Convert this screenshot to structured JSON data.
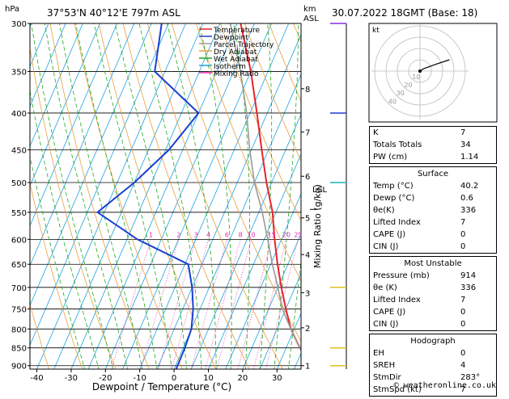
{
  "header": {
    "location": "37°53'N  40°12'E  797m  ASL",
    "datetime": "30.07.2022  18GMT  (Base: 18)",
    "pressure_unit": "hPa",
    "altitude_unit_line1": "km",
    "altitude_unit_line2": "ASL"
  },
  "legend": [
    {
      "name": "Temperature",
      "color": "#e8232a"
    },
    {
      "name": "Dewpoint",
      "color": "#1a3fd1"
    },
    {
      "name": "Parcel Trajectory",
      "color": "#9a9a9a"
    },
    {
      "name": "Dry Adiabat",
      "color": "#e6a03c"
    },
    {
      "name": "Wet Adiabat",
      "color": "#1ea81e"
    },
    {
      "name": "Isotherm",
      "color": "#1aa3e0"
    },
    {
      "name": "Mixing Ratio",
      "color": "#e62bb0"
    }
  ],
  "chart_data": {
    "type": "line",
    "title": "",
    "xlabel": "Dewpoint / Temperature (°C)",
    "ylabel": "hPa",
    "right_label": "Mixing Ratio (g/kg)",
    "xlim": [
      -42,
      37
    ],
    "ylim": [
      300,
      910
    ],
    "skew_per_decade_pressure": 0.43,
    "x_ticks": [
      -40,
      -30,
      -20,
      -10,
      0,
      10,
      20,
      30
    ],
    "pressure_levels": [
      300,
      350,
      400,
      450,
      500,
      550,
      600,
      650,
      700,
      750,
      800,
      850,
      900
    ],
    "km_levels": [
      {
        "km": 1,
        "p": 900
      },
      {
        "km": 2,
        "p": 797
      },
      {
        "km": 3,
        "p": 712
      },
      {
        "km": 4,
        "p": 630
      },
      {
        "km": 5,
        "p": 560
      },
      {
        "km": 6,
        "p": 490
      },
      {
        "km": 7,
        "p": 425
      },
      {
        "km": 8,
        "p": 370
      }
    ],
    "lcl_label": "LCL",
    "mixing_ratio_labels": [
      "1",
      "2",
      "3",
      "4",
      "6",
      "8",
      "10",
      "15",
      "20",
      "25"
    ],
    "mixing_ratio_values": [
      1,
      2,
      3,
      4,
      6,
      8,
      10,
      15,
      20,
      25
    ],
    "series": [
      {
        "name": "Temperature",
        "color": "#e8232a",
        "points": [
          [
            914,
            40.2
          ],
          [
            850,
            34
          ],
          [
            800,
            29
          ],
          [
            750,
            25
          ],
          [
            700,
            21
          ],
          [
            650,
            17
          ],
          [
            600,
            13
          ],
          [
            550,
            9
          ],
          [
            500,
            3.5
          ],
          [
            450,
            -2
          ],
          [
            400,
            -8
          ],
          [
            350,
            -15
          ],
          [
            300,
            -24
          ]
        ]
      },
      {
        "name": "Dewpoint",
        "color": "#1a3fd1",
        "points": [
          [
            914,
            0.6
          ],
          [
            850,
            0.5
          ],
          [
            800,
            0
          ],
          [
            750,
            -2
          ],
          [
            700,
            -5
          ],
          [
            650,
            -9
          ],
          [
            600,
            -27
          ],
          [
            550,
            -42
          ],
          [
            500,
            -35
          ],
          [
            450,
            -29
          ],
          [
            400,
            -25
          ],
          [
            350,
            -43
          ],
          [
            300,
            -47
          ]
        ]
      },
      {
        "name": "Parcel Trajectory",
        "color": "#9a9a9a",
        "points": [
          [
            914,
            40.2
          ],
          [
            850,
            34
          ],
          [
            800,
            29
          ],
          [
            750,
            24
          ],
          [
            700,
            20
          ],
          [
            650,
            15.5
          ],
          [
            600,
            11
          ],
          [
            550,
            6
          ],
          [
            500,
            0
          ],
          [
            450,
            -5.5
          ],
          [
            400,
            -11
          ],
          [
            350,
            -18
          ],
          [
            300,
            -27
          ]
        ]
      }
    ],
    "wind_barbs": [
      {
        "p": 300,
        "color": "#8a2be2"
      },
      {
        "p": 400,
        "color": "#1a3fd1"
      },
      {
        "p": 500,
        "color": "#1ab0b0"
      },
      {
        "p": 700,
        "color": "#e0c020"
      },
      {
        "p": 850,
        "color": "#e0c020"
      },
      {
        "p": 900,
        "color": "#e0c020"
      }
    ]
  },
  "hodograph": {
    "label": "kt",
    "ring_labels": [
      "10",
      "20",
      "30",
      "40"
    ],
    "points": [
      [
        0,
        0
      ],
      [
        3,
        2
      ],
      [
        14,
        6
      ],
      [
        26,
        10
      ]
    ]
  },
  "table": {
    "block1": [
      {
        "k": "K",
        "v": "7"
      },
      {
        "k": "Totals Totals",
        "v": "34"
      },
      {
        "k": "PW (cm)",
        "v": "1.14"
      }
    ],
    "surface": {
      "title": "Surface",
      "rows": [
        {
          "k": "Temp (°C)",
          "v": "40.2"
        },
        {
          "k": "Dewp (°C)",
          "v": "0.6"
        },
        {
          "k": "θe(K)",
          "v": "336"
        },
        {
          "k": "Lifted Index",
          "v": "7"
        },
        {
          "k": "CAPE (J)",
          "v": "0"
        },
        {
          "k": "CIN (J)",
          "v": "0"
        }
      ]
    },
    "unstable": {
      "title": "Most Unstable",
      "rows": [
        {
          "k": "Pressure (mb)",
          "v": "914"
        },
        {
          "k": "θe (K)",
          "v": "336"
        },
        {
          "k": "Lifted Index",
          "v": "7"
        },
        {
          "k": "CAPE (J)",
          "v": "0"
        },
        {
          "k": "CIN (J)",
          "v": "0"
        }
      ]
    },
    "hodo": {
      "title": "Hodograph",
      "rows": [
        {
          "k": "EH",
          "v": "0"
        },
        {
          "k": "SREH",
          "v": "4"
        },
        {
          "k": "StmDir",
          "v": "283°"
        },
        {
          "k": "StmSpd (kt)",
          "v": "7"
        }
      ]
    }
  },
  "footer": "© weatheronline.co.uk"
}
